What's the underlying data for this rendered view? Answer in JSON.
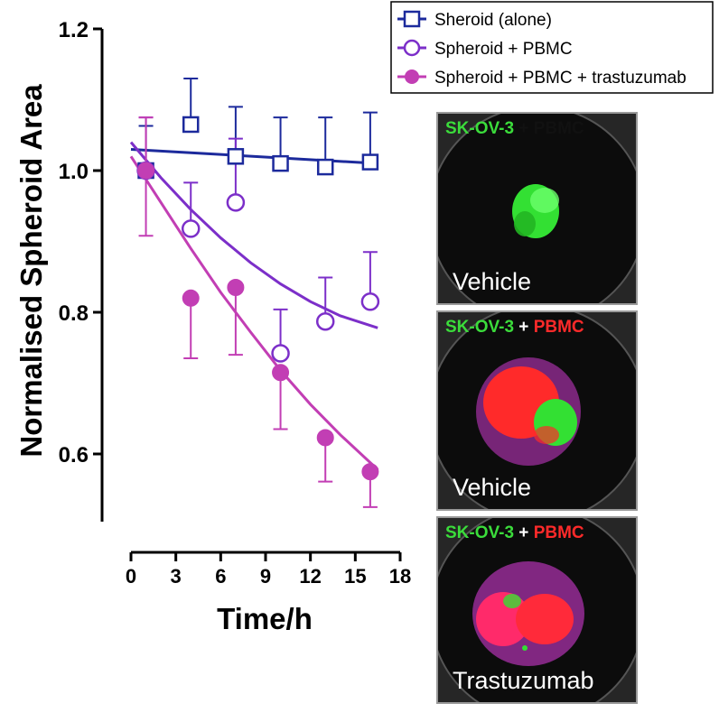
{
  "chart_data": {
    "type": "scatter",
    "xlabel": "Time/h",
    "ylabel": "Normalised Spheroid Area",
    "xlim": [
      0,
      18
    ],
    "ylim": [
      0.5,
      1.2
    ],
    "x_ticks": [
      "0",
      "3",
      "6",
      "9",
      "12",
      "15",
      "18"
    ],
    "y_ticks": [
      "0.6",
      "0.8",
      "1.0",
      "1.2"
    ],
    "legend_position": "top-right",
    "series": [
      {
        "name": "Sheroid (alone)",
        "color": "#1c2a9c",
        "marker": "open-square",
        "x": [
          1,
          4,
          7,
          10,
          13,
          16
        ],
        "y": [
          1.0,
          1.065,
          1.02,
          1.01,
          1.005,
          1.012
        ],
        "err_up": [
          0.063,
          0.065,
          0.07,
          0.065,
          0.07,
          0.07
        ],
        "err_down": [
          0,
          0,
          0,
          0,
          0,
          0
        ],
        "fit": [
          [
            0,
            1.03
          ],
          [
            16.5,
            1.01
          ]
        ]
      },
      {
        "name": "Spheroid + PBMC",
        "color": "#7c2fc9",
        "marker": "open-circle",
        "x": [
          1,
          4,
          7,
          10,
          13,
          16
        ],
        "y": [
          1.0,
          0.918,
          0.955,
          0.742,
          0.787,
          0.815
        ],
        "err_up": [
          0.075,
          0.065,
          0.09,
          0.062,
          0.062,
          0.07
        ],
        "err_down": [
          0,
          0,
          0,
          0,
          0,
          0
        ],
        "fit": [
          [
            0,
            1.04
          ],
          [
            2,
            0.99
          ],
          [
            4,
            0.945
          ],
          [
            6,
            0.905
          ],
          [
            8,
            0.87
          ],
          [
            10,
            0.84
          ],
          [
            12,
            0.815
          ],
          [
            14,
            0.795
          ],
          [
            16.5,
            0.778
          ]
        ]
      },
      {
        "name": "Spheroid + PBMC + trastuzumab",
        "color": "#c23eb4",
        "marker": "filled-circle",
        "x": [
          1,
          4,
          7,
          10,
          13,
          16
        ],
        "y": [
          1.0,
          0.82,
          0.835,
          0.715,
          0.623,
          0.575
        ],
        "err_up": [
          0.075,
          0,
          0,
          0,
          0,
          0
        ],
        "err_down": [
          0.092,
          0.085,
          0.095,
          0.08,
          0.062,
          0.05
        ],
        "fit": [
          [
            0,
            1.02
          ],
          [
            2,
            0.955
          ],
          [
            4,
            0.89
          ],
          [
            6,
            0.828
          ],
          [
            8,
            0.772
          ],
          [
            10,
            0.718
          ],
          [
            12,
            0.67
          ],
          [
            14,
            0.627
          ],
          [
            16.5,
            0.578
          ]
        ]
      }
    ]
  },
  "panels": [
    {
      "title_a": "SK-OV-3",
      "title_sep": " + ",
      "title_b": "PBMC",
      "caption": "Vehicle"
    },
    {
      "title_a": "SK-OV-3",
      "title_sep": " + ",
      "title_b": "PBMC",
      "caption": "Vehicle"
    },
    {
      "title_a": "SK-OV-3",
      "title_sep": " + ",
      "title_b": "PBMC",
      "caption": "Trastuzumab"
    }
  ],
  "colors": {
    "panel_bg": "#1a1a1a",
    "green_cells": "#33e033",
    "red_cells": "#ff2a2a",
    "magenta_cells": "#d03ad0"
  }
}
